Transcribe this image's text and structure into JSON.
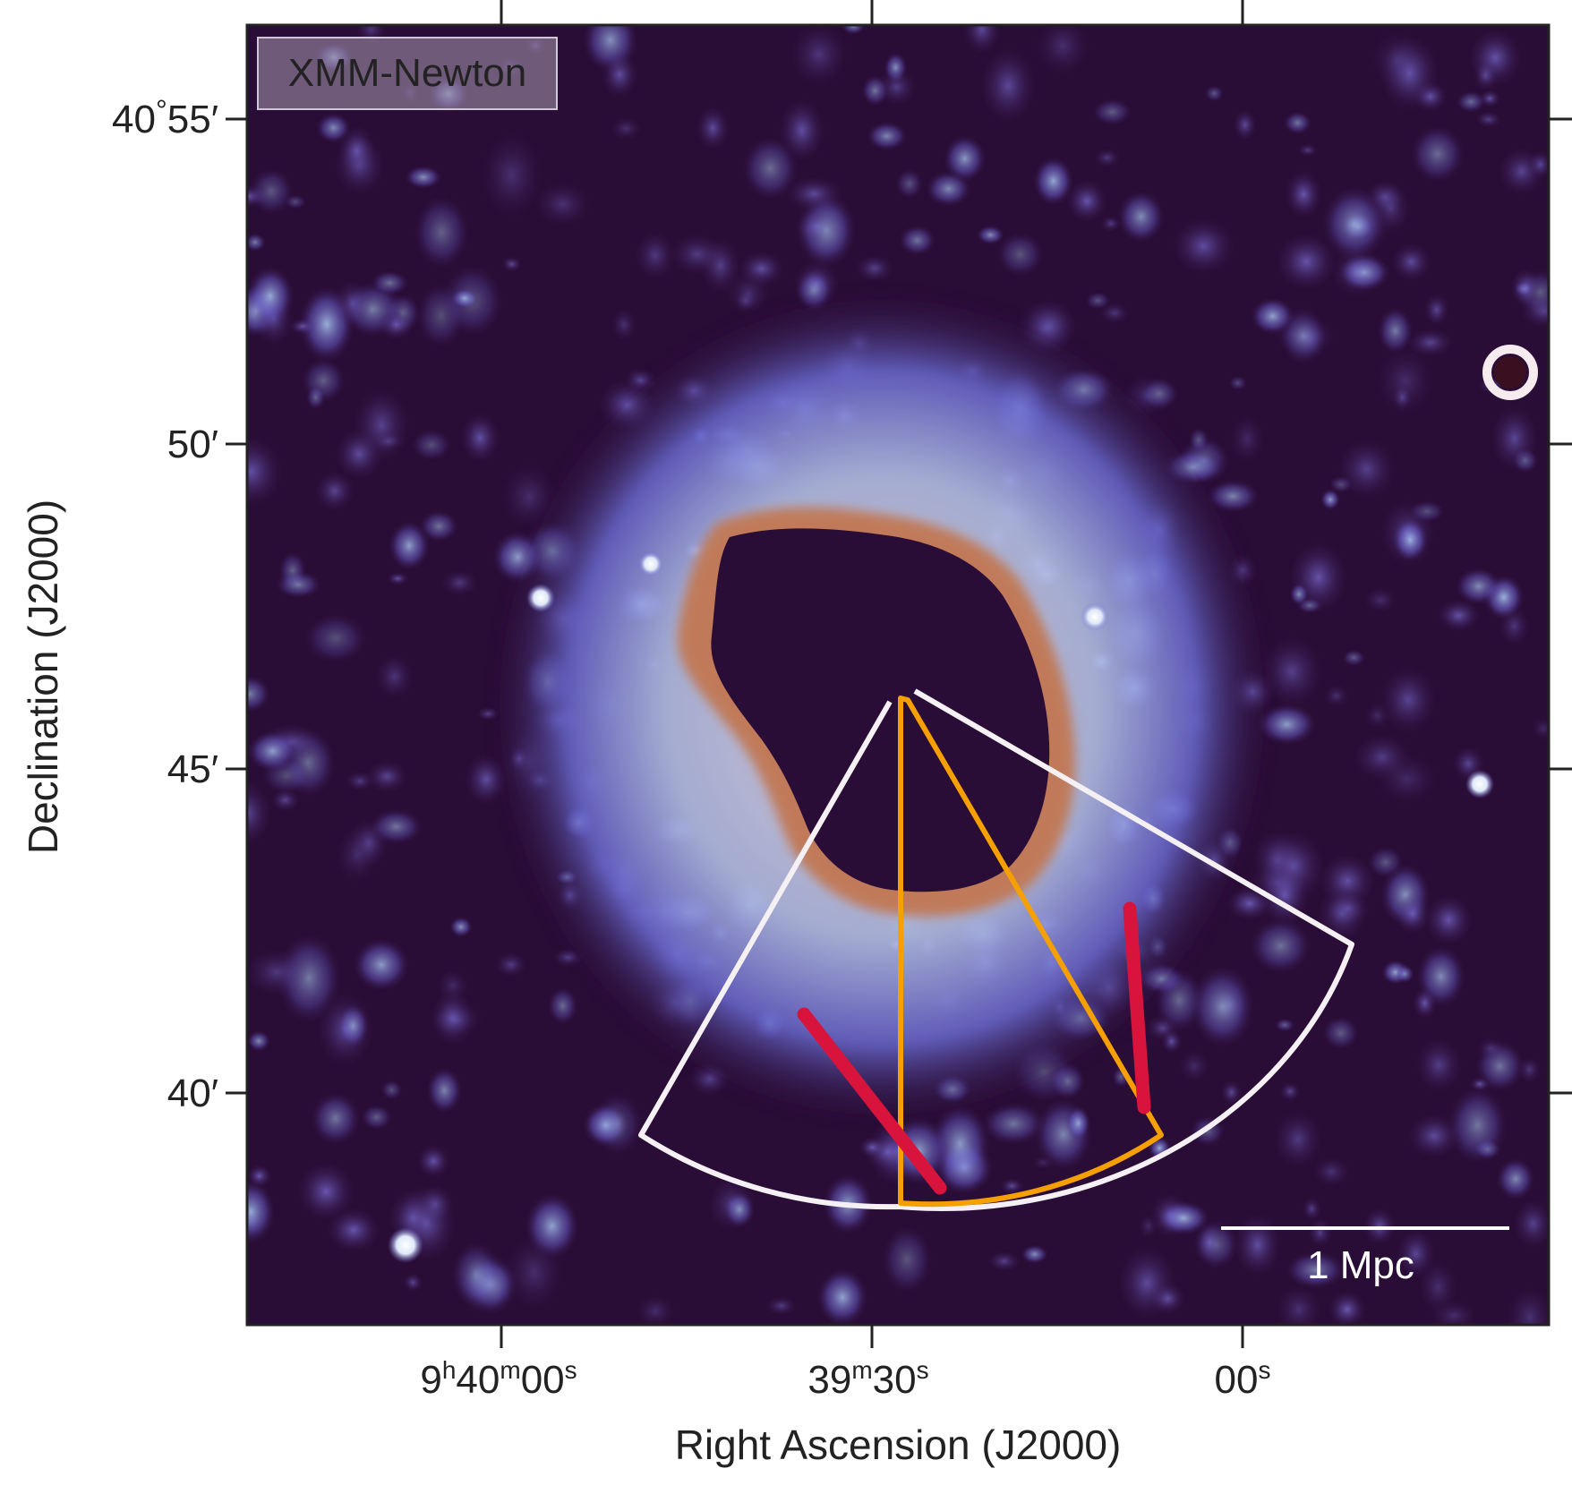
{
  "figure": {
    "telescope_label": "XMM-Newton",
    "scale_bar_label": "1 Mpc",
    "x_axis_title": "Right Ascension (J2000)",
    "y_axis_title": "Declination (J2000)",
    "ra_ticks": [
      {
        "h": "9",
        "hs": "h",
        "m": "40",
        "ms": "m",
        "s": "00",
        "ss": "s"
      },
      {
        "h": "",
        "hs": "",
        "m": "39",
        "ms": "m",
        "s": "30",
        "ss": "s"
      },
      {
        "h": "",
        "hs": "",
        "m": "",
        "ms": "",
        "s": "00",
        "ss": "s"
      }
    ],
    "dec_ticks": [
      {
        "deg": "40",
        "degsym": "°",
        "arcmin": "55′"
      },
      {
        "deg": "",
        "degsym": "",
        "arcmin": "50′"
      },
      {
        "deg": "",
        "degsym": "",
        "arcmin": "45′"
      },
      {
        "deg": "",
        "degsym": "",
        "arcmin": "40′"
      }
    ],
    "colors": {
      "background": "#2a0d36",
      "white_sector": "#f4f0f4",
      "orange_sector": "#f5a000",
      "red_marks": "#d8143c",
      "cluster_core": "#2a0d36",
      "rim": "#a8604a"
    }
  }
}
